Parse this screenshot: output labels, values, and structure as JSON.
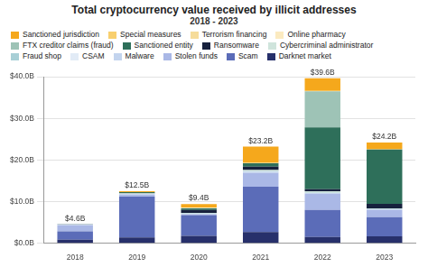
{
  "chart_data": {
    "type": "bar",
    "title": "Total cryptocurrency value received by illicit addresses",
    "subtitle": "2018 - 2023",
    "categories": [
      "2018",
      "2019",
      "2020",
      "2021",
      "2022",
      "2023"
    ],
    "stacked": true,
    "legend": "top",
    "grid": true,
    "ylim": [
      0,
      40
    ],
    "yticks": [
      {
        "value": 0,
        "label": "$0.0B"
      },
      {
        "value": 10,
        "label": "$10.0B"
      },
      {
        "value": 20,
        "label": "$20.0B"
      },
      {
        "value": 30,
        "label": "$30.0B"
      },
      {
        "value": 40,
        "label": "$40.0B"
      }
    ],
    "totals": [
      4.6,
      12.5,
      9.4,
      23.2,
      39.6,
      24.2
    ],
    "total_labels": [
      "$4.6B",
      "$12.5B",
      "$9.4B",
      "$23.2B",
      "$39.6B",
      "$24.2B"
    ],
    "series": [
      {
        "name": "Sanctioned jurisdiction",
        "color": "#f5a81c",
        "values": [
          0,
          0.2,
          0.8,
          3.8,
          3.0,
          1.6
        ]
      },
      {
        "name": "Special measures",
        "color": "#f8cf6e",
        "values": [
          0,
          0,
          0,
          0.2,
          0.1,
          0
        ]
      },
      {
        "name": "Terrorism financing",
        "color": "#f6dc9a",
        "values": [
          0,
          0,
          0.1,
          0,
          0,
          0.1
        ]
      },
      {
        "name": "Online pharmacy",
        "color": "#fbeac0",
        "values": [
          0,
          0,
          0.1,
          0,
          0,
          0
        ]
      },
      {
        "name": "FTX creditor claims (fraud)",
        "color": "#9ec3b6",
        "values": [
          0,
          0,
          0,
          0,
          8.7,
          0
        ]
      },
      {
        "name": "Sanctioned entity",
        "color": "#2e6f5a",
        "values": [
          0,
          0.2,
          0.4,
          0.8,
          14.8,
          13.0
        ]
      },
      {
        "name": "Ransomware",
        "color": "#17213d",
        "values": [
          0.05,
          0.1,
          0.7,
          0.8,
          0.5,
          1.1
        ]
      },
      {
        "name": "Cybercriminal administrator",
        "color": "#cfe4dc",
        "values": [
          0,
          0.1,
          0.1,
          0.3,
          0.3,
          0.1
        ]
      },
      {
        "name": "Fraud shop",
        "color": "#a8cfd6",
        "values": [
          0.1,
          0.1,
          0.1,
          0.1,
          0.1,
          0.1
        ]
      },
      {
        "name": "CSAM",
        "color": "#e2ebf6",
        "values": [
          0,
          0,
          0,
          0,
          0,
          0
        ]
      },
      {
        "name": "Malware",
        "color": "#c3d4ee",
        "values": [
          0.1,
          0.1,
          0.1,
          0.3,
          0.2,
          0.1
        ]
      },
      {
        "name": "Stolen funds",
        "color": "#aab8e6",
        "values": [
          1.45,
          0.5,
          0.2,
          3.3,
          3.9,
          1.8
        ]
      },
      {
        "name": "Scam",
        "color": "#5b6cb8",
        "values": [
          2.0,
          9.8,
          5.0,
          10.9,
          6.5,
          4.6
        ]
      },
      {
        "name": "Darknet market",
        "color": "#27306b",
        "values": [
          0.9,
          1.4,
          1.8,
          2.7,
          1.5,
          1.7
        ]
      }
    ]
  }
}
